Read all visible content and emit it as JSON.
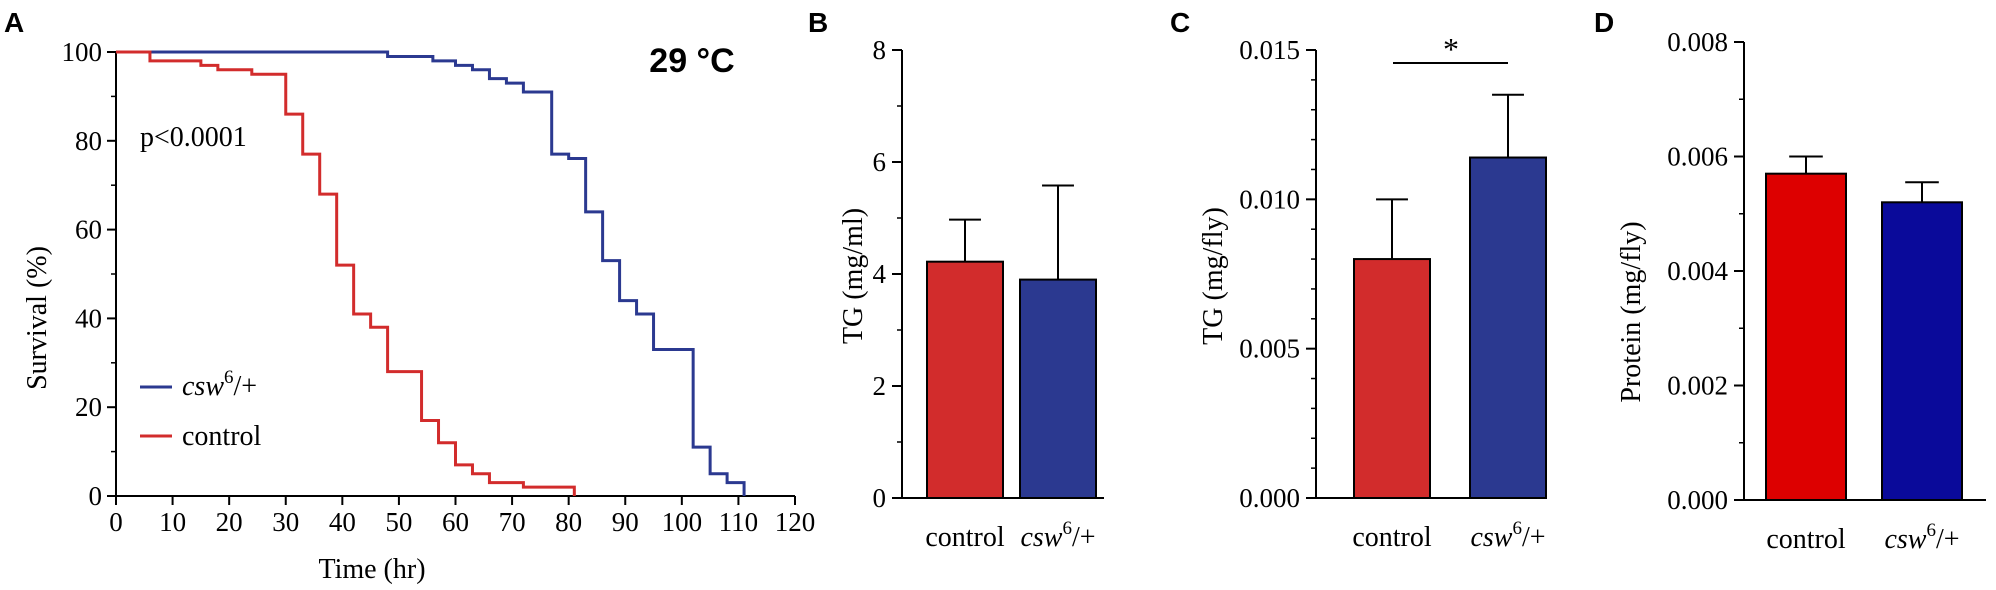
{
  "colors": {
    "red": "#d22c2c",
    "blue": "#2b3990",
    "bright_red": "#dd0000",
    "navy": "#0a0a9a",
    "axis": "#000000"
  },
  "chart_data": [
    {
      "panel": "A",
      "type": "line",
      "title": "29 °C",
      "annotation": "p<0.0001",
      "xlabel": "Time (hr)",
      "ylabel": "Survival (%)",
      "xlim": [
        0,
        120
      ],
      "ylim": [
        0,
        100
      ],
      "xticks": [
        "0",
        "10",
        "20",
        "30",
        "40",
        "50",
        "60",
        "70",
        "80",
        "90",
        "100",
        "110",
        "120"
      ],
      "yticks": [
        "0",
        "20",
        "40",
        "60",
        "80",
        "100"
      ],
      "legend": [
        {
          "label": "csw",
          "sup": "6",
          "suffix": "/+"
        },
        {
          "label": "control",
          "sup": "",
          "suffix": ""
        }
      ],
      "series": [
        {
          "name": "csw6/+",
          "color": "#2b3990",
          "steps": [
            [
              0,
              100
            ],
            [
              48,
              99
            ],
            [
              56,
              98
            ],
            [
              60,
              97
            ],
            [
              63,
              96
            ],
            [
              66,
              94
            ],
            [
              69,
              93
            ],
            [
              72,
              91
            ],
            [
              77,
              77
            ],
            [
              80,
              76
            ],
            [
              83,
              64
            ],
            [
              86,
              53
            ],
            [
              89,
              44
            ],
            [
              92,
              41
            ],
            [
              95,
              33
            ],
            [
              102,
              11
            ],
            [
              105,
              5
            ],
            [
              108,
              3
            ],
            [
              111,
              0
            ]
          ]
        },
        {
          "name": "control",
          "color": "#d22c2c",
          "steps": [
            [
              0,
              100
            ],
            [
              6,
              98
            ],
            [
              15,
              97
            ],
            [
              18,
              96
            ],
            [
              24,
              95
            ],
            [
              30,
              86
            ],
            [
              33,
              77
            ],
            [
              36,
              68
            ],
            [
              39,
              52
            ],
            [
              42,
              41
            ],
            [
              45,
              38
            ],
            [
              48,
              28
            ],
            [
              54,
              17
            ],
            [
              57,
              12
            ],
            [
              60,
              7
            ],
            [
              63,
              5
            ],
            [
              66,
              3
            ],
            [
              72,
              2
            ],
            [
              81,
              0
            ]
          ]
        }
      ]
    },
    {
      "panel": "B",
      "type": "bar",
      "ylabel": "TG (mg/ml)",
      "ylim": [
        0,
        8
      ],
      "yticks": [
        "0",
        "2",
        "4",
        "6",
        "8"
      ],
      "categories": [
        {
          "label": "control",
          "sup": "",
          "suffix": "",
          "italic": false
        },
        {
          "label": "csw",
          "sup": "6",
          "suffix": "/+",
          "italic": true
        }
      ],
      "values": [
        4.22,
        3.9
      ],
      "errors": [
        0.75,
        1.68
      ],
      "colors": [
        "#d22c2c",
        "#2b3990"
      ]
    },
    {
      "panel": "C",
      "type": "bar",
      "ylabel": "TG (mg/fly)",
      "ylim": [
        0,
        0.015
      ],
      "yticks": [
        "0.000",
        "0.005",
        "0.010",
        "0.015"
      ],
      "significance": "*",
      "categories": [
        {
          "label": "control",
          "sup": "",
          "suffix": "",
          "italic": false
        },
        {
          "label": "csw",
          "sup": "6",
          "suffix": "/+",
          "italic": true
        }
      ],
      "values": [
        0.008,
        0.0114
      ],
      "errors": [
        0.002,
        0.0021
      ],
      "colors": [
        "#d22c2c",
        "#2b3990"
      ]
    },
    {
      "panel": "D",
      "type": "bar",
      "ylabel": "Protein (mg/fly)",
      "ylim": [
        0,
        0.008
      ],
      "yticks": [
        "0.000",
        "0.002",
        "0.004",
        "0.006",
        "0.008"
      ],
      "categories": [
        {
          "label": "control",
          "sup": "",
          "suffix": "",
          "italic": false
        },
        {
          "label": "csw",
          "sup": "6",
          "suffix": "/+",
          "italic": true
        }
      ],
      "values": [
        0.0057,
        0.0052
      ],
      "errors": [
        0.0003,
        0.00035
      ],
      "colors": [
        "#dd0000",
        "#0a0a9a"
      ]
    }
  ]
}
